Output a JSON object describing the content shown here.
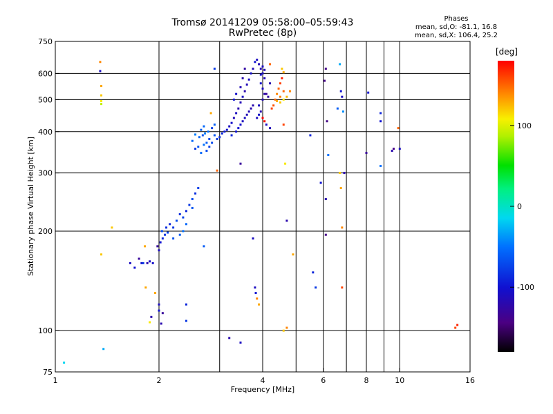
{
  "title_line1": "Tromsø 20141209 05:58:00–05:59:43",
  "title_line2": "RwPretec (8p)",
  "stats": {
    "title": "Phases",
    "line1": "mean, sd,O: -81.1, 16.8",
    "line2": "mean, sd,X: 106.4, 25.2"
  },
  "colorbar": {
    "unit_label": "[deg]",
    "ticks": [
      "100",
      "0",
      "-100"
    ],
    "tick_values": [
      100,
      0,
      -100
    ],
    "range": [
      -180,
      180
    ]
  },
  "chart_data": {
    "type": "scatter",
    "xlabel": "Frequency [MHz]",
    "ylabel": "Stationary phase Virtual Height [km]",
    "x_scale": "log",
    "y_scale": "log",
    "xlim": [
      1,
      16
    ],
    "ylim": [
      75,
      750
    ],
    "x_ticks": [
      1,
      2,
      4,
      6,
      8,
      10,
      16
    ],
    "x_tick_labels": [
      "1",
      "2",
      "4",
      "6",
      "8",
      "10",
      "16"
    ],
    "y_ticks": [
      75,
      100,
      200,
      300,
      400,
      500,
      600,
      750
    ],
    "y_tick_labels": [
      "75",
      "100",
      "200",
      "300",
      "400",
      "500",
      "600",
      "750"
    ],
    "x_gridlines": [
      2,
      3,
      4,
      5,
      6,
      7,
      8,
      9,
      10
    ],
    "y_gridlines": [
      100,
      200,
      300,
      400,
      500,
      600
    ],
    "points": [
      [
        1.06,
        80,
        -15
      ],
      [
        1.38,
        88,
        -30
      ],
      [
        1.35,
        650,
        140
      ],
      [
        1.35,
        610,
        -110
      ],
      [
        1.36,
        550,
        130
      ],
      [
        1.36,
        515,
        120
      ],
      [
        1.36,
        495,
        110
      ],
      [
        1.36,
        485,
        90
      ],
      [
        1.36,
        170,
        120
      ],
      [
        1.46,
        205,
        120
      ],
      [
        1.65,
        160,
        -110
      ],
      [
        1.7,
        155,
        -100
      ],
      [
        1.75,
        165,
        -130
      ],
      [
        1.78,
        160,
        -100
      ],
      [
        1.82,
        180,
        130
      ],
      [
        1.8,
        160,
        -80
      ],
      [
        1.85,
        160,
        -120
      ],
      [
        1.88,
        162,
        -110
      ],
      [
        1.92,
        160,
        -105
      ],
      [
        1.83,
        135,
        130
      ],
      [
        1.9,
        110,
        -120
      ],
      [
        1.88,
        106,
        110
      ],
      [
        1.95,
        130,
        130
      ],
      [
        2.0,
        120,
        -110
      ],
      [
        2.0,
        115,
        -100
      ],
      [
        2.05,
        113,
        -130
      ],
      [
        2.03,
        105,
        -120
      ],
      [
        1.98,
        180,
        -130
      ],
      [
        2.0,
        175,
        -110
      ],
      [
        2.02,
        185,
        -100
      ],
      [
        2.05,
        190,
        -90
      ],
      [
        2.08,
        195,
        -80
      ],
      [
        2.04,
        200,
        -70
      ],
      [
        2.1,
        205,
        -85
      ],
      [
        2.12,
        198,
        -75
      ],
      [
        2.15,
        210,
        -90
      ],
      [
        2.2,
        205,
        -80
      ],
      [
        2.25,
        215,
        -70
      ],
      [
        2.3,
        225,
        -85
      ],
      [
        2.35,
        220,
        -75
      ],
      [
        2.4,
        230,
        -90
      ],
      [
        2.45,
        240,
        -80
      ],
      [
        2.5,
        250,
        -70
      ],
      [
        2.55,
        260,
        -85
      ],
      [
        2.6,
        270,
        -75
      ],
      [
        2.3,
        195,
        -60
      ],
      [
        2.4,
        210,
        -55
      ],
      [
        2.5,
        235,
        -65
      ],
      [
        2.2,
        190,
        -65
      ],
      [
        2.35,
        200,
        -50
      ],
      [
        2.4,
        120,
        -90
      ],
      [
        2.4,
        107,
        -80
      ],
      [
        2.7,
        180,
        -60
      ],
      [
        2.75,
        350,
        -70
      ],
      [
        2.65,
        345,
        -55
      ],
      [
        2.55,
        355,
        -80
      ],
      [
        2.6,
        360,
        -65
      ],
      [
        2.7,
        365,
        -50
      ],
      [
        2.75,
        370,
        -60
      ],
      [
        2.8,
        380,
        -70
      ],
      [
        2.62,
        385,
        -55
      ],
      [
        2.68,
        390,
        -65
      ],
      [
        2.72,
        395,
        -45
      ],
      [
        2.78,
        400,
        -50
      ],
      [
        2.85,
        410,
        -75
      ],
      [
        2.9,
        420,
        -60
      ],
      [
        2.5,
        375,
        -55
      ],
      [
        2.55,
        392,
        -45
      ],
      [
        2.65,
        405,
        -60
      ],
      [
        2.7,
        415,
        -55
      ],
      [
        2.8,
        360,
        -75
      ],
      [
        2.9,
        390,
        -65
      ],
      [
        2.85,
        370,
        -70
      ],
      [
        2.95,
        380,
        -80
      ],
      [
        3.0,
        385,
        -85
      ],
      [
        2.83,
        455,
        130
      ],
      [
        2.9,
        620,
        -80
      ],
      [
        2.95,
        305,
        150
      ],
      [
        3.05,
        395,
        -90
      ],
      [
        3.1,
        400,
        -95
      ],
      [
        3.15,
        405,
        -100
      ],
      [
        3.2,
        415,
        -110
      ],
      [
        3.25,
        425,
        -105
      ],
      [
        3.3,
        440,
        -115
      ],
      [
        3.35,
        455,
        -110
      ],
      [
        3.4,
        470,
        -120
      ],
      [
        3.45,
        490,
        -115
      ],
      [
        3.5,
        510,
        -110
      ],
      [
        3.55,
        530,
        -120
      ],
      [
        3.6,
        555,
        -115
      ],
      [
        3.65,
        575,
        -110
      ],
      [
        3.7,
        600,
        -105
      ],
      [
        3.75,
        620,
        -115
      ],
      [
        3.8,
        650,
        -100
      ],
      [
        3.3,
        500,
        -100
      ],
      [
        3.35,
        520,
        -105
      ],
      [
        3.45,
        545,
        -115
      ],
      [
        3.5,
        580,
        -120
      ],
      [
        3.55,
        620,
        -125
      ],
      [
        3.4,
        410,
        -100
      ],
      [
        3.5,
        430,
        -110
      ],
      [
        3.6,
        450,
        -115
      ],
      [
        3.7,
        470,
        -120
      ],
      [
        3.25,
        390,
        -90
      ],
      [
        3.35,
        400,
        -100
      ],
      [
        3.45,
        420,
        -105
      ],
      [
        3.55,
        440,
        -110
      ],
      [
        3.65,
        460,
        -115
      ],
      [
        3.75,
        480,
        -120
      ],
      [
        3.45,
        320,
        -130
      ],
      [
        3.2,
        95,
        -120
      ],
      [
        3.45,
        92,
        -110
      ],
      [
        3.75,
        190,
        -110
      ],
      [
        3.8,
        135,
        -110
      ],
      [
        3.82,
        130,
        -100
      ],
      [
        3.85,
        125,
        140
      ],
      [
        3.9,
        120,
        130
      ],
      [
        3.85,
        660,
        -110
      ],
      [
        3.9,
        640,
        -115
      ],
      [
        3.95,
        620,
        -120
      ],
      [
        4.0,
        600,
        -110
      ],
      [
        4.05,
        580,
        -115
      ],
      [
        3.95,
        560,
        -105
      ],
      [
        4.0,
        540,
        -110
      ],
      [
        4.05,
        520,
        -120
      ],
      [
        4.0,
        500,
        -115
      ],
      [
        3.9,
        480,
        -110
      ],
      [
        3.95,
        460,
        -120
      ],
      [
        4.0,
        440,
        180
      ],
      [
        4.05,
        430,
        175
      ],
      [
        4.1,
        420,
        -110
      ],
      [
        4.2,
        410,
        -115
      ],
      [
        3.85,
        440,
        -110
      ],
      [
        3.9,
        450,
        -105
      ],
      [
        4.1,
        520,
        -130
      ],
      [
        4.15,
        510,
        -125
      ],
      [
        4.2,
        560,
        -120
      ],
      [
        3.95,
        595,
        -105
      ],
      [
        4.0,
        630,
        -110
      ],
      [
        4.05,
        615,
        -115
      ],
      [
        4.25,
        470,
        160
      ],
      [
        4.3,
        480,
        155
      ],
      [
        4.35,
        500,
        150
      ],
      [
        4.4,
        520,
        140
      ],
      [
        4.45,
        540,
        150
      ],
      [
        4.5,
        560,
        160
      ],
      [
        4.55,
        580,
        170
      ],
      [
        4.4,
        495,
        130
      ],
      [
        4.5,
        510,
        140
      ],
      [
        4.6,
        530,
        150
      ],
      [
        4.5,
        490,
        120
      ],
      [
        4.6,
        500,
        110
      ],
      [
        4.7,
        510,
        125
      ],
      [
        4.8,
        530,
        140
      ],
      [
        4.6,
        420,
        160
      ],
      [
        4.55,
        620,
        120
      ],
      [
        4.6,
        605,
        130
      ],
      [
        4.2,
        640,
        150
      ],
      [
        4.65,
        320,
        110
      ],
      [
        4.7,
        215,
        -120
      ],
      [
        4.6,
        100,
        120
      ],
      [
        4.7,
        102,
        140
      ],
      [
        4.9,
        170,
        130
      ],
      [
        5.5,
        390,
        -90
      ],
      [
        5.7,
        135,
        -80
      ],
      [
        5.6,
        150,
        -90
      ],
      [
        5.9,
        280,
        -100
      ],
      [
        6.1,
        250,
        -120
      ],
      [
        6.1,
        195,
        -140
      ],
      [
        6.1,
        620,
        -140
      ],
      [
        6.05,
        570,
        -140
      ],
      [
        6.15,
        430,
        -140
      ],
      [
        6.2,
        340,
        -50
      ],
      [
        6.6,
        470,
        -60
      ],
      [
        6.7,
        300,
        120
      ],
      [
        6.75,
        270,
        130
      ],
      [
        6.8,
        205,
        140
      ],
      [
        6.8,
        135,
        160
      ],
      [
        6.7,
        640,
        -30
      ],
      [
        6.75,
        530,
        -100
      ],
      [
        6.8,
        510,
        -110
      ],
      [
        6.85,
        460,
        -40
      ],
      [
        6.9,
        300,
        -120
      ],
      [
        8.0,
        345,
        -130
      ],
      [
        8.1,
        525,
        -100
      ],
      [
        8.8,
        455,
        -90
      ],
      [
        8.8,
        430,
        -100
      ],
      [
        8.8,
        315,
        -50
      ],
      [
        9.6,
        355,
        -140
      ],
      [
        9.5,
        350,
        -120
      ],
      [
        9.9,
        410,
        150
      ],
      [
        10.0,
        355,
        -110
      ],
      [
        14.5,
        102,
        160
      ],
      [
        14.7,
        104,
        170
      ]
    ]
  }
}
